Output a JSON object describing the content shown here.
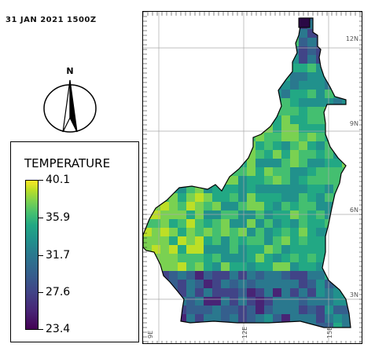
{
  "timestamp": "31 JAN 2021 1500Z",
  "north_label": "N",
  "legend": {
    "title": "TEMPERATURE",
    "ticks": [
      "40.1",
      "35.9",
      "31.7",
      "27.6",
      "23.4"
    ],
    "min": 23.4,
    "max": 40.1,
    "colormap": "viridis"
  },
  "map": {
    "lat_labels": [
      "12N",
      "9N",
      "6N",
      "3N"
    ],
    "lon_labels": [
      "9E",
      "12E",
      "15E"
    ],
    "colors": {
      "border": "#000000",
      "grid": "#aaaaaa",
      "background": "#ffffff"
    }
  }
}
